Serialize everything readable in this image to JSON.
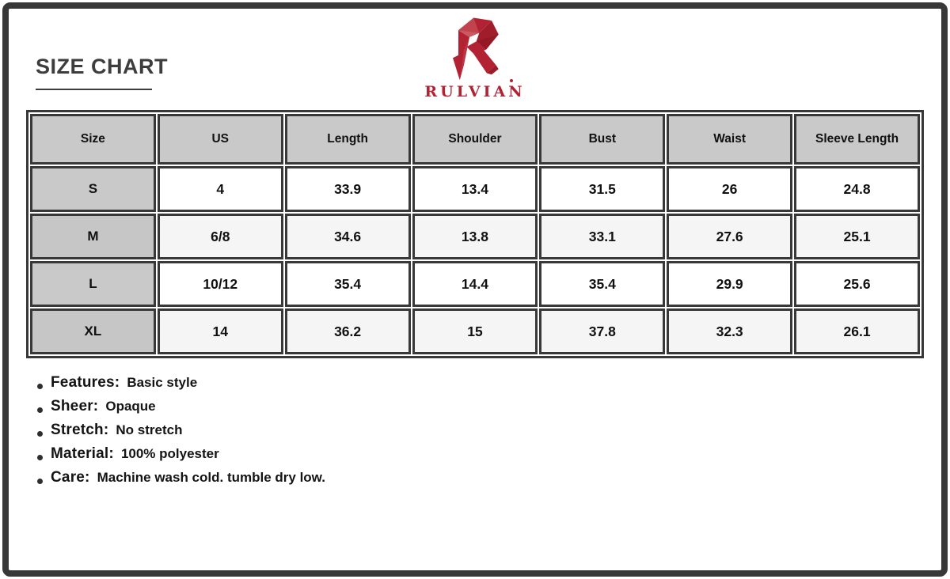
{
  "header": {
    "title": "SIZE CHART"
  },
  "brand": {
    "name": "RULVIAN",
    "logo_icon": "angular-r-logo",
    "accent_color": "#b22233"
  },
  "size_chart": {
    "columns": [
      "Size",
      "US",
      "Length",
      "Shoulder",
      "Bust",
      "Waist",
      "Sleeve Length"
    ],
    "rows": [
      {
        "size": "S",
        "values": [
          "4",
          "33.9",
          "13.4",
          "31.5",
          "26",
          "24.8"
        ]
      },
      {
        "size": "M",
        "values": [
          "6/8",
          "34.6",
          "13.8",
          "33.1",
          "27.6",
          "25.1"
        ]
      },
      {
        "size": "L",
        "values": [
          "10/12",
          "35.4",
          "14.4",
          "35.4",
          "29.9",
          "25.6"
        ]
      },
      {
        "size": "XL",
        "values": [
          "14",
          "36.2",
          "15",
          "37.8",
          "32.3",
          "26.1"
        ]
      }
    ]
  },
  "details": [
    {
      "label": "Features:",
      "value": "Basic style"
    },
    {
      "label": "Sheer:",
      "value": "Opaque"
    },
    {
      "label": "Stretch:",
      "value": "No stretch"
    },
    {
      "label": "Material:",
      "value": "100% polyester"
    },
    {
      "label": "Care:",
      "value": "Machine wash cold. tumble dry low."
    }
  ],
  "colors": {
    "grid": "#383838",
    "header_cell_bg": "#c9c9c9",
    "alt_row_bg": "#f5f5f5",
    "text": "#111111",
    "brand_red": "#b22233"
  }
}
